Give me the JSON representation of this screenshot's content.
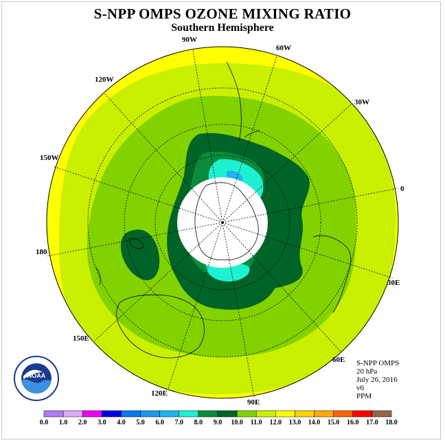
{
  "title": "S-NPP OMPS OZONE MIXING RATIO",
  "subtitle": "Southern Hemisphere",
  "longitude_labels": {
    "lon_90w": "90W",
    "lon_60w": "60W",
    "lon_30w": "30W",
    "lon_0": "0",
    "lon_30e": "30E",
    "lon_60e": "60E",
    "lon_90e": "90E",
    "lon_120e": "120E",
    "lon_150e": "150E",
    "lon_180": "180",
    "lon_150w": "150W",
    "lon_120w": "120W"
  },
  "info": {
    "instrument": "S-NPP OMPS",
    "level": "20 hPa",
    "date": "July 26, 2016",
    "version": "v6",
    "units": "PPM"
  },
  "logo_text": "NOAA",
  "colorbar": {
    "labels": [
      "0.0",
      "1.0",
      "2.0",
      "3.0",
      "4.0",
      "5.0",
      "6.0",
      "7.0",
      "8.0",
      "9.0",
      "10.0",
      "11.0",
      "12.0",
      "13.0",
      "14.0",
      "15.0",
      "16.0",
      "17.0",
      "18.0"
    ],
    "colors": [
      "#b07cf0",
      "#dcaaf6",
      "#f000f0",
      "#0000e6",
      "#0a78f0",
      "#1e96f0",
      "#1eb4f0",
      "#1ef0d2",
      "#0a8c3c",
      "#006428",
      "#82d200",
      "#c8f000",
      "#ffff00",
      "#ffd200",
      "#ffaa00",
      "#ff6400",
      "#ff0000",
      "#96644b"
    ]
  }
}
